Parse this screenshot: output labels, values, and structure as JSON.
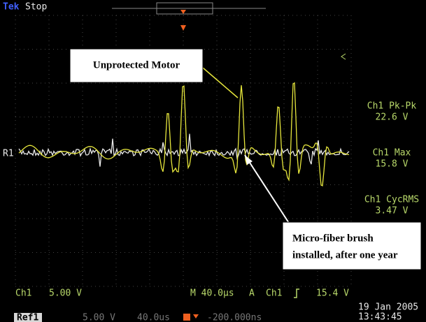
{
  "header": {
    "brand": "Tek",
    "status": "Stop"
  },
  "annotations": {
    "top": "Unprotected Motor",
    "bottom": [
      "Micro-fiber brush",
      "installed, after one year"
    ]
  },
  "measurements": [
    {
      "label": "Ch1 Pk-Pk",
      "value": "22.6 V"
    },
    {
      "label": "Ch1 Max",
      "value": "15.8 V"
    },
    {
      "label": "Ch1 CycRMS",
      "value": "3.47 V"
    }
  ],
  "ref_marker": "R1",
  "footer": {
    "ch1": "Ch1",
    "ch1_scale": "5.00 V",
    "timebase": "M 40.0µs",
    "trigger_mode": "A",
    "trigger_source": "Ch1",
    "trigger_level": "15.4 V",
    "ref": "Ref1",
    "ref_scale": "5.00 V",
    "ref_time": "40.0us",
    "ref_offset": "-200.000ns",
    "date": "19 Jan  2005",
    "time": "13:43:45"
  }
}
